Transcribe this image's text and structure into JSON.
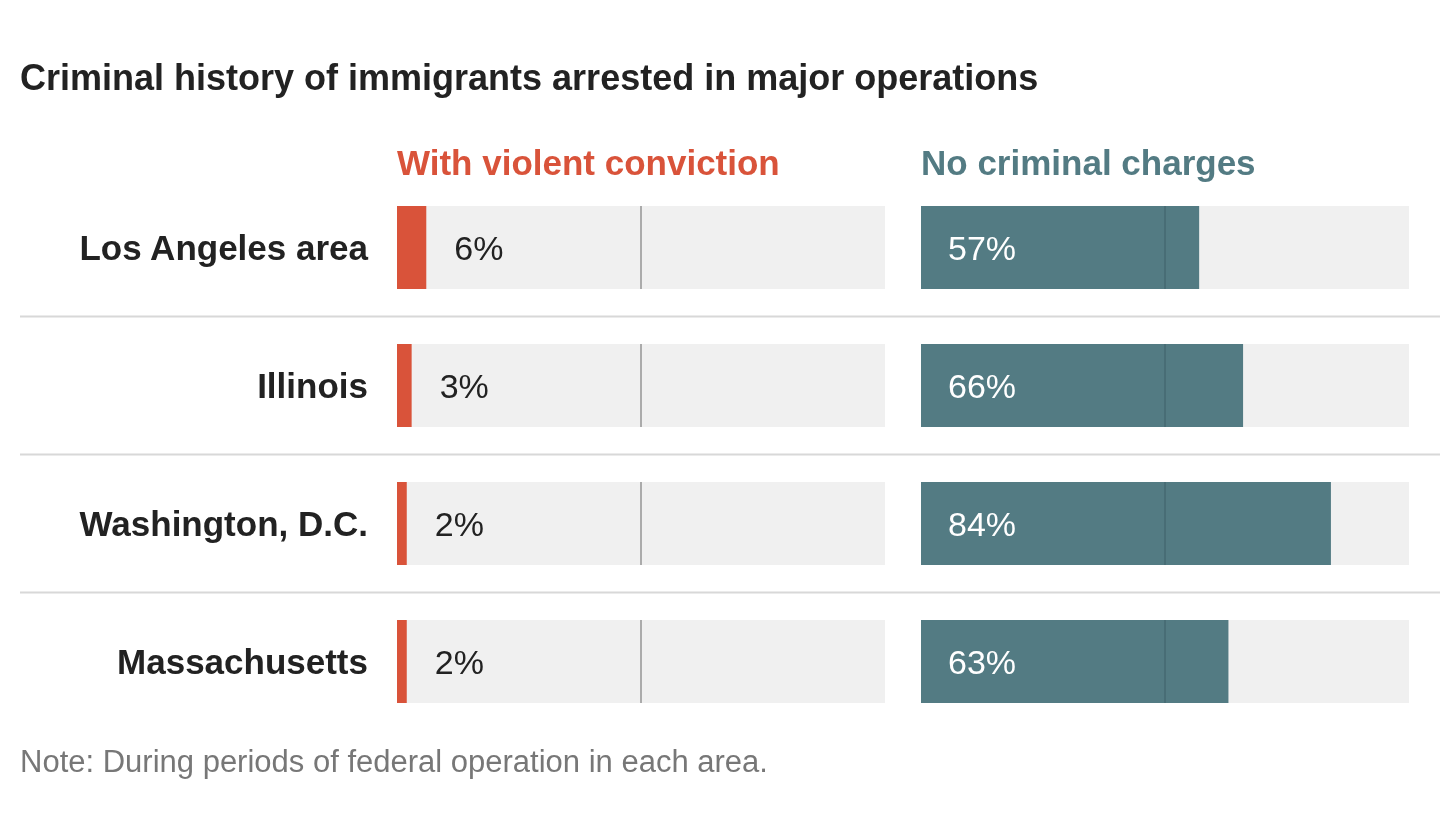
{
  "chart_data": [
    {
      "type": "bar",
      "orientation": "horizontal",
      "title": "Criminal history of immigrants arrested in major operations",
      "annotations": [
        "Note: During periods of federal operation in each area."
      ],
      "categories": [
        "Los Angeles area",
        "Illinois",
        "Washington, D.C.",
        "Massachusetts"
      ],
      "xlim": [
        0,
        100
      ],
      "ref_lines": [
        {
          "axis": "x",
          "value": 50,
          "color": "#666666"
        }
      ],
      "series": [
        {
          "name": "With violent conviction",
          "color": "#d9533a",
          "values": [
            6,
            3,
            2,
            2
          ],
          "value_labels": [
            "6%",
            "3%",
            "2%",
            "2%"
          ]
        }
      ]
    },
    {
      "type": "bar",
      "orientation": "horizontal",
      "categories": [
        null,
        null,
        null,
        null
      ],
      "xlim": [
        0,
        100
      ],
      "ref_lines": [
        {
          "axis": "x",
          "value": 50,
          "color": "#3f6068"
        }
      ],
      "series": [
        {
          "name": "No criminal charges",
          "color": "#537b83",
          "values": [
            57,
            66,
            84,
            63
          ],
          "value_labels": [
            "57%",
            "66%",
            "84%",
            "63%"
          ]
        }
      ]
    }
  ]
}
